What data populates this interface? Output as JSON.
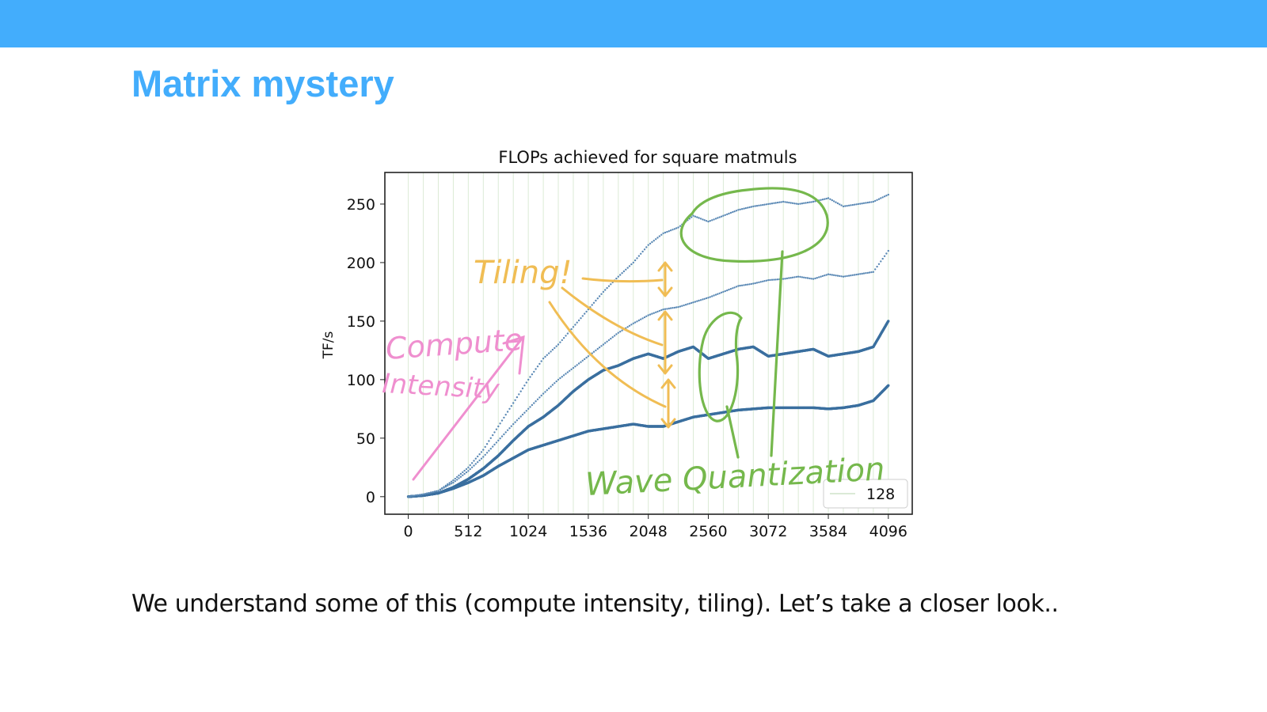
{
  "header": {
    "bar_color": "#43adfc"
  },
  "slide": {
    "title": "Matrix mystery",
    "title_color": "#43adfc",
    "caption": "We understand some of this (compute intensity, tiling). Let’s take a closer look.."
  },
  "chart_data": {
    "type": "scatter",
    "title": "FLOPs achieved for square matmuls",
    "xlabel": "",
    "ylabel": "TF/s",
    "xlim": [
      -200,
      4300
    ],
    "ylim": [
      -15,
      277
    ],
    "xticks": [
      0,
      512,
      1024,
      1536,
      2048,
      2560,
      3072,
      3584,
      4096
    ],
    "yticks": [
      0,
      50,
      100,
      150,
      200,
      250
    ],
    "grid": "vertical lines every 128",
    "legend": {
      "label": "128",
      "position": "bottom-right"
    },
    "series": [
      {
        "style": "dense-points",
        "color": "#3a6f9f",
        "x": [
          0,
          128,
          256,
          384,
          512,
          640,
          768,
          896,
          1024,
          1152,
          1280,
          1408,
          1536,
          1664,
          1792,
          1920,
          2048,
          2176,
          2304,
          2432,
          2560,
          2688,
          2816,
          2944,
          3072,
          3200,
          3328,
          3456,
          3584,
          3712,
          3840,
          3968,
          4096
        ],
        "y": [
          0,
          1,
          3,
          8,
          15,
          24,
          35,
          48,
          60,
          68,
          78,
          90,
          100,
          108,
          112,
          118,
          122,
          118,
          124,
          128,
          118,
          122,
          126,
          128,
          120,
          122,
          124,
          126,
          120,
          122,
          124,
          128,
          150
        ]
      },
      {
        "style": "dense-points",
        "color": "#3a6f9f",
        "x": [
          0,
          128,
          256,
          384,
          512,
          640,
          768,
          896,
          1024,
          1152,
          1280,
          1408,
          1536,
          1664,
          1792,
          1920,
          2048,
          2176,
          2304,
          2432,
          2560,
          2688,
          2816,
          2944,
          3072,
          3200,
          3328,
          3456,
          3584,
          3712,
          3840,
          3968,
          4096
        ],
        "y": [
          0,
          1,
          3,
          7,
          12,
          18,
          26,
          33,
          40,
          44,
          48,
          52,
          56,
          58,
          60,
          62,
          60,
          60,
          64,
          68,
          70,
          72,
          74,
          75,
          76,
          76,
          76,
          76,
          75,
          76,
          78,
          82,
          95
        ]
      },
      {
        "style": "sparse-points",
        "color": "#5b89b5",
        "x": [
          0,
          128,
          256,
          384,
          512,
          640,
          768,
          896,
          1024,
          1152,
          1280,
          1408,
          1536,
          1664,
          1792,
          1920,
          2048,
          2176,
          2304,
          2432,
          2560,
          2688,
          2816,
          2944,
          3072,
          3200,
          3328,
          3456,
          3584,
          3712,
          3840,
          3968,
          4096
        ],
        "y": [
          0,
          2,
          5,
          14,
          25,
          40,
          60,
          80,
          100,
          118,
          130,
          145,
          160,
          175,
          188,
          200,
          215,
          225,
          230,
          240,
          235,
          240,
          245,
          248,
          250,
          252,
          250,
          252,
          255,
          248,
          250,
          252,
          258
        ]
      },
      {
        "style": "sparse-points",
        "color": "#5b89b5",
        "x": [
          0,
          128,
          256,
          384,
          512,
          640,
          768,
          896,
          1024,
          1152,
          1280,
          1408,
          1536,
          1664,
          1792,
          1920,
          2048,
          2176,
          2304,
          2432,
          2560,
          2688,
          2816,
          2944,
          3072,
          3200,
          3328,
          3456,
          3584,
          3712,
          3840,
          3968,
          4096
        ],
        "y": [
          0,
          2,
          5,
          12,
          22,
          34,
          48,
          62,
          75,
          88,
          100,
          110,
          120,
          130,
          140,
          148,
          155,
          160,
          162,
          166,
          170,
          175,
          180,
          182,
          185,
          186,
          188,
          186,
          190,
          188,
          190,
          192,
          210
        ]
      }
    ],
    "annotations": [
      {
        "text": "Tiling!",
        "color": "#f0bd54"
      },
      {
        "text": "Compute",
        "color": "#ef8fcf"
      },
      {
        "text": "Intensity",
        "color": "#ef8fcf"
      },
      {
        "text": "Wave Quantization",
        "color": "#75b84c"
      }
    ]
  }
}
